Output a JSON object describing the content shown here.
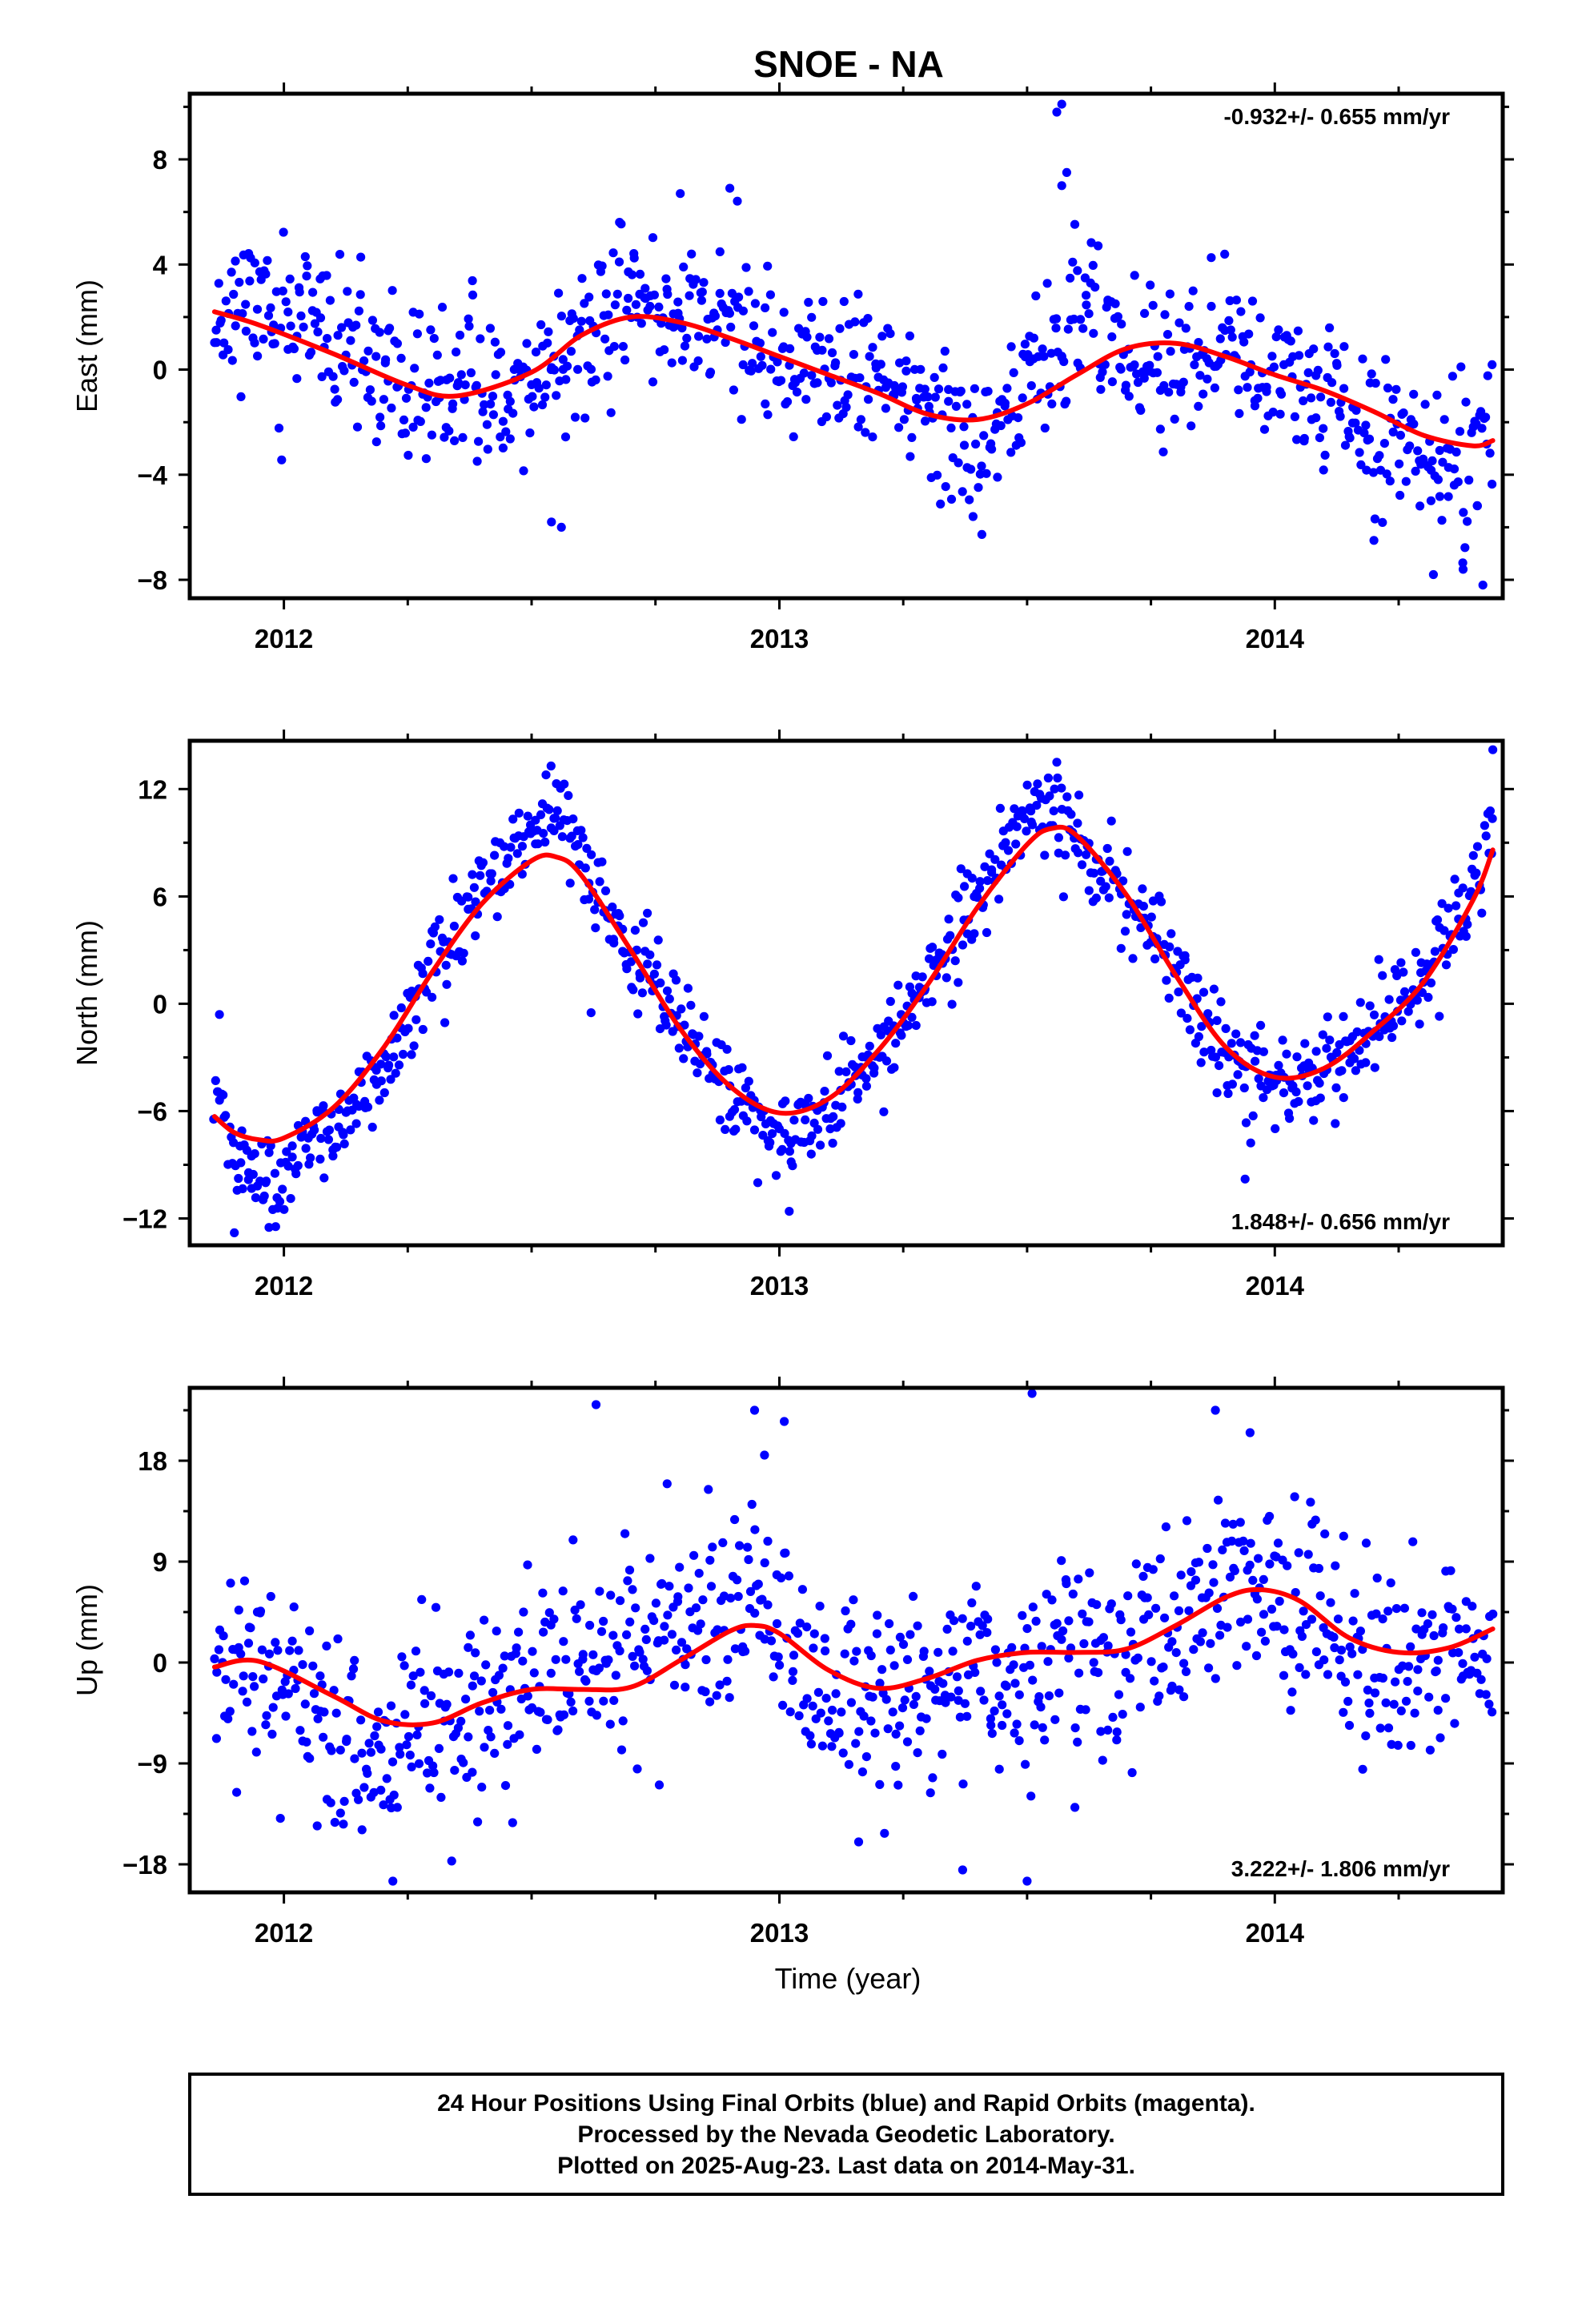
{
  "title": "SNOE - NA",
  "footer": {
    "lines": [
      "24 Hour Positions Using Final Orbits (blue) and Rapid Orbits (magenta).",
      "Processed by the Nevada Geodetic Laboratory.",
      "Plotted on 2025-Aug-23. Last data on 2014-May-31."
    ]
  },
  "colors": {
    "points": "#0000ff",
    "fit": "#ff0000",
    "frame": "#000000"
  },
  "chart_data": [
    {
      "type": "scatter",
      "ylabel": "East (mm)",
      "xlabel": "",
      "rate_text": "-0.932+/- 0.655 mm/yr",
      "rate_position": "top-right",
      "xlim": [
        2011.81,
        2014.46
      ],
      "ylim": [
        -8.7,
        10.5
      ],
      "xticks": [
        2012,
        2013,
        2014
      ],
      "xtick_labels": [
        "2012",
        "2013",
        "2014"
      ],
      "yticks": [
        -8,
        -4,
        0,
        4,
        8
      ],
      "ytick_labels": [
        "−8",
        "−4",
        "0",
        "4",
        "8"
      ],
      "fit": {
        "x": [
          2011.86,
          2011.95,
          2012.1,
          2012.25,
          2012.35,
          2012.5,
          2012.6,
          2012.7,
          2012.8,
          2012.9,
          2013.0,
          2013.1,
          2013.2,
          2013.3,
          2013.4,
          2013.5,
          2013.6,
          2013.7,
          2013.8,
          2013.9,
          2014.0,
          2014.1,
          2014.2,
          2014.3,
          2014.4,
          2014.44
        ],
        "y": [
          2.2,
          1.7,
          0.6,
          -0.6,
          -1.0,
          -0.1,
          1.3,
          2.0,
          1.8,
          1.2,
          0.5,
          -0.2,
          -0.9,
          -1.7,
          -1.9,
          -1.3,
          -0.2,
          0.8,
          1.0,
          0.5,
          -0.2,
          -0.8,
          -1.6,
          -2.5,
          -2.9,
          -2.7
        ]
      },
      "anchors": {
        "x": [
          2011.86,
          2011.95,
          2012.1,
          2012.25,
          2012.35,
          2012.5,
          2012.6,
          2012.7,
          2012.8,
          2012.9,
          2013.0,
          2013.1,
          2013.2,
          2013.3,
          2013.4,
          2013.5,
          2013.6,
          2013.7,
          2013.8,
          2013.9,
          2014.0,
          2014.1,
          2014.2,
          2014.3,
          2014.4,
          2014.44
        ],
        "y": [
          2.3,
          2.4,
          1.2,
          -1.0,
          -0.9,
          -0.5,
          1.0,
          2.6,
          2.5,
          1.6,
          0.3,
          -0.2,
          -0.5,
          -1.5,
          -2.8,
          -0.6,
          2.4,
          1.0,
          0.0,
          1.3,
          -0.5,
          -1.0,
          -2.3,
          -3.2,
          -3.0,
          -2.0
        ]
      },
      "scatter_sigma": 1.45,
      "outliers": [
        {
          "x": 2013.56,
          "y": 9.8
        },
        {
          "x": 2013.57,
          "y": 10.1
        },
        {
          "x": 2013.58,
          "y": 7.5
        },
        {
          "x": 2013.57,
          "y": 7.0
        },
        {
          "x": 2012.9,
          "y": 6.9
        },
        {
          "x": 2012.8,
          "y": 6.7
        },
        {
          "x": 2012.54,
          "y": -5.8
        },
        {
          "x": 2012.56,
          "y": -6.0
        },
        {
          "x": 2014.42,
          "y": -8.2
        },
        {
          "x": 2014.32,
          "y": -7.8
        },
        {
          "x": 2014.38,
          "y": -7.6
        },
        {
          "x": 2014.2,
          "y": -6.5
        }
      ],
      "n_points": 880,
      "seed": 11
    },
    {
      "type": "scatter",
      "ylabel": "North (mm)",
      "xlabel": "",
      "rate_text": "1.848+/- 0.656 mm/yr",
      "rate_position": "bottom-right",
      "xlim": [
        2011.81,
        2014.46
      ],
      "ylim": [
        -13.5,
        14.7
      ],
      "xticks": [
        2012,
        2013,
        2014
      ],
      "xtick_labels": [
        "2012",
        "2013",
        "2014"
      ],
      "yticks": [
        -12,
        -6,
        0,
        6,
        12
      ],
      "ytick_labels": [
        "−12",
        "−6",
        "0",
        "6",
        "12"
      ],
      "fit": {
        "x": [
          2011.86,
          2011.9,
          2011.95,
          2012.0,
          2012.1,
          2012.2,
          2012.3,
          2012.4,
          2012.5,
          2012.55,
          2012.6,
          2012.7,
          2012.8,
          2012.9,
          2013.0,
          2013.1,
          2013.2,
          2013.3,
          2013.4,
          2013.5,
          2013.55,
          2013.6,
          2013.7,
          2013.8,
          2013.9,
          2014.0,
          2014.1,
          2014.2,
          2014.3,
          2014.4,
          2014.44
        ],
        "y": [
          -6.3,
          -7.2,
          -7.6,
          -7.5,
          -5.8,
          -2.5,
          1.8,
          5.6,
          8.0,
          8.2,
          7.2,
          3.0,
          -1.4,
          -4.6,
          -6.1,
          -5.3,
          -2.6,
          1.1,
          5.4,
          8.9,
          9.8,
          9.4,
          6.1,
          1.6,
          -2.4,
          -4.1,
          -3.6,
          -1.5,
          1.2,
          5.8,
          8.6
        ]
      },
      "anchors": {
        "x": [
          2011.86,
          2011.9,
          2011.95,
          2012.0,
          2012.1,
          2012.2,
          2012.3,
          2012.4,
          2012.5,
          2012.55,
          2012.6,
          2012.7,
          2012.8,
          2012.9,
          2013.0,
          2013.1,
          2013.2,
          2013.3,
          2013.4,
          2013.5,
          2013.55,
          2013.6,
          2013.7,
          2013.8,
          2013.9,
          2014.0,
          2014.1,
          2014.2,
          2014.3,
          2014.4,
          2014.44
        ],
        "y": [
          -4.5,
          -8.5,
          -10.0,
          -9.5,
          -7.0,
          -3.5,
          1.5,
          6.0,
          9.5,
          10.0,
          8.0,
          3.0,
          -1.0,
          -5.0,
          -7.5,
          -6.0,
          -3.0,
          1.0,
          6.0,
          10.5,
          11.0,
          9.0,
          6.0,
          1.5,
          -3.0,
          -5.0,
          -3.5,
          -1.5,
          1.5,
          6.5,
          10.5
        ]
      },
      "scatter_sigma": 1.25,
      "outliers": [
        {
          "x": 2011.87,
          "y": -0.6
        },
        {
          "x": 2011.9,
          "y": -12.8
        },
        {
          "x": 2011.97,
          "y": -12.5
        },
        {
          "x": 2013.02,
          "y": -11.6
        },
        {
          "x": 2013.56,
          "y": 13.5
        },
        {
          "x": 2014.44,
          "y": 14.2
        },
        {
          "x": 2013.94,
          "y": -9.8
        },
        {
          "x": 2012.62,
          "y": -0.5
        },
        {
          "x": 2012.55,
          "y": 12.3
        }
      ],
      "n_points": 880,
      "seed": 23
    },
    {
      "type": "scatter",
      "ylabel": "Up (mm)",
      "xlabel": "Time (year)",
      "rate_text": "3.222+/- 1.806 mm/yr",
      "rate_position": "bottom-right",
      "xlim": [
        2011.81,
        2014.46
      ],
      "ylim": [
        -20.5,
        24.5
      ],
      "xticks": [
        2012,
        2013,
        2014
      ],
      "xtick_labels": [
        "2012",
        "2013",
        "2014"
      ],
      "yticks": [
        -18,
        -9,
        0,
        9,
        18
      ],
      "ytick_labels": [
        "−18",
        "−9",
        "0",
        "9",
        "18"
      ],
      "fit": {
        "x": [
          2011.86,
          2011.95,
          2012.1,
          2012.2,
          2012.3,
          2012.4,
          2012.5,
          2012.6,
          2012.7,
          2012.8,
          2012.9,
          2012.95,
          2013.0,
          2013.1,
          2013.2,
          2013.3,
          2013.4,
          2013.5,
          2013.6,
          2013.7,
          2013.8,
          2013.9,
          2013.97,
          2014.05,
          2014.15,
          2014.25,
          2014.35,
          2014.44
        ],
        "y": [
          -0.4,
          0.1,
          -3.0,
          -5.2,
          -5.4,
          -3.6,
          -2.4,
          -2.4,
          -2.2,
          0.2,
          2.8,
          3.3,
          2.6,
          -0.7,
          -2.3,
          -1.4,
          0.2,
          0.9,
          0.9,
          1.2,
          3.3,
          5.8,
          6.5,
          5.5,
          2.2,
          0.9,
          1.3,
          3.0
        ]
      },
      "anchors": {
        "x": [
          2011.86,
          2011.95,
          2012.1,
          2012.2,
          2012.3,
          2012.4,
          2012.5,
          2012.6,
          2012.7,
          2012.8,
          2012.9,
          2012.95,
          2013.0,
          2013.1,
          2013.2,
          2013.3,
          2013.4,
          2013.5,
          2013.6,
          2013.7,
          2013.8,
          2013.9,
          2013.97,
          2014.05,
          2014.15,
          2014.25,
          2014.35,
          2014.44
        ],
        "y": [
          0.0,
          -1.0,
          -4.5,
          -7.5,
          -6.5,
          -4.0,
          -1.5,
          -0.5,
          1.0,
          3.0,
          6.0,
          6.5,
          3.0,
          -3.0,
          -2.5,
          -2.5,
          -2.0,
          -1.0,
          0.0,
          1.0,
          4.0,
          7.0,
          7.5,
          5.0,
          1.5,
          -1.0,
          0.5,
          0.0
        ]
      },
      "scatter_sigma": 4.4,
      "outliers": [
        {
          "x": 2012.63,
          "y": 23.0
        },
        {
          "x": 2012.95,
          "y": 22.5
        },
        {
          "x": 2013.01,
          "y": 21.5
        },
        {
          "x": 2013.51,
          "y": 24.0
        },
        {
          "x": 2013.88,
          "y": 22.5
        },
        {
          "x": 2012.22,
          "y": -19.5
        },
        {
          "x": 2013.37,
          "y": -18.5
        },
        {
          "x": 2013.5,
          "y": -19.5
        },
        {
          "x": 2013.16,
          "y": -16.0
        },
        {
          "x": 2012.97,
          "y": 18.5
        },
        {
          "x": 2013.95,
          "y": 20.5
        }
      ],
      "n_points": 880,
      "seed": 37
    }
  ]
}
